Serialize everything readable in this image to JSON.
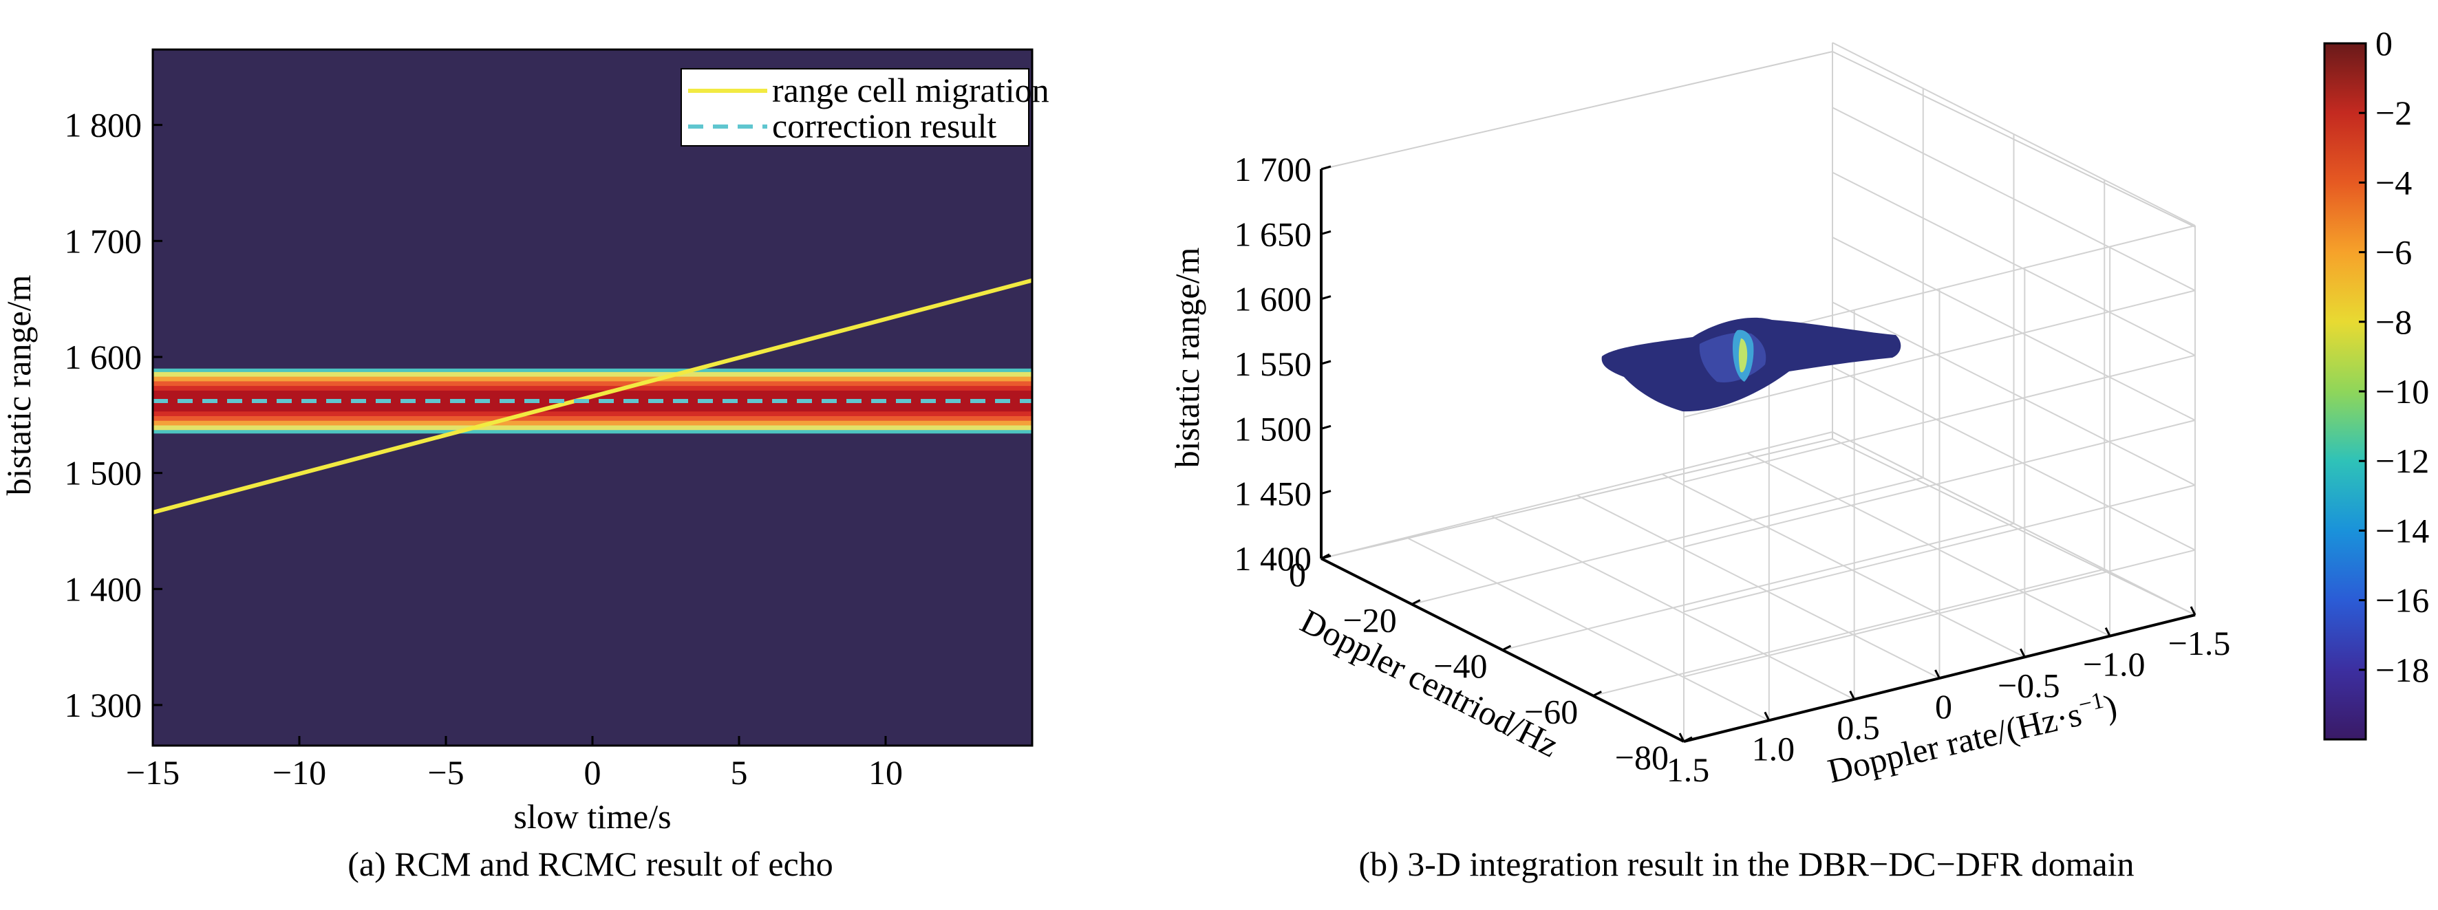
{
  "panel_a": {
    "caption": "(a) RCM and RCMC result of echo",
    "chart_data": {
      "type": "line",
      "xlabel": "slow time/s",
      "ylabel": "bistatic range/m",
      "xlim": [
        -15,
        15
      ],
      "ylim": [
        1865,
        1265
      ],
      "y_reversed": true,
      "xticks": [
        -15,
        -10,
        -5,
        0,
        5,
        10
      ],
      "xtick_labels": [
        "−15",
        "−10",
        "−5",
        "0",
        "5",
        "10"
      ],
      "yticks": [
        1300,
        1400,
        1500,
        1600,
        1700,
        1800
      ],
      "ytick_labels": [
        "1 300",
        "1 400",
        "1 500",
        "1 600",
        "1 700",
        "1 800"
      ],
      "background_color": "#352A56",
      "band": {
        "center": 1562,
        "layers": [
          {
            "half_width": 28,
            "color": "#4DC4C0"
          },
          {
            "half_width": 25,
            "color": "#E2E36A"
          },
          {
            "half_width": 21,
            "color": "#F4A13A"
          },
          {
            "half_width": 17,
            "color": "#EA5A2E"
          },
          {
            "half_width": 13,
            "color": "#D42D25"
          },
          {
            "half_width": 9,
            "color": "#B0141E"
          }
        ]
      },
      "series": [
        {
          "name": "range cell migration",
          "style": "solid",
          "color": "#F2EA42",
          "x": [
            -15,
            15
          ],
          "y": [
            1466,
            1666
          ]
        },
        {
          "name": "correction result",
          "style": "dashed",
          "color": "#5FC6CF",
          "x": [
            -15,
            15
          ],
          "y": [
            1562,
            1562
          ]
        }
      ],
      "legend_position": "top-right"
    }
  },
  "panel_b": {
    "caption": "(b) 3-D integration result in the DBR−DC−DFR domain",
    "chart_data": {
      "type": "scatter",
      "zlabel": "bistatic range/m",
      "xlabel": "Doppler centriod/Hz",
      "ylabel": "Doppler rate/(Hz·s",
      "ylabel_superscript": "−1",
      "ylabel_close": ")",
      "zticks": [
        1400,
        1450,
        1500,
        1550,
        1600,
        1650,
        1700
      ],
      "ztick_labels": [
        "1 400",
        "1 450",
        "1 500",
        "1 550",
        "1 600",
        "1 650",
        "1 700"
      ],
      "xticks": [
        0,
        -20,
        -40,
        -60,
        -80
      ],
      "xtick_labels": [
        "0",
        "−20",
        "−40",
        "−60",
        "−80"
      ],
      "yticks": [
        1.5,
        1.0,
        0.5,
        0,
        -0.5,
        -1.0,
        -1.5
      ],
      "ytick_labels": [
        "1.5",
        "1.0",
        "0.5",
        "0",
        "−0.5",
        "−1.0",
        "−1.5"
      ],
      "zlim": [
        1400,
        1700
      ],
      "xlim": [
        0,
        -80
      ],
      "ylim": [
        1.5,
        -1.5
      ],
      "grid": true,
      "target": {
        "range": 1555,
        "description_color": "#2A2E7A",
        "peak_color": "#BFE36A"
      }
    },
    "colorbar": {
      "ticks": [
        0,
        -2,
        -4,
        -6,
        -8,
        -10,
        -12,
        -14,
        -16,
        -18
      ],
      "tick_labels": [
        "0",
        "−2",
        "−4",
        "−6",
        "−8",
        "−10",
        "−12",
        "−14",
        "−16",
        "−18"
      ],
      "range": [
        -20,
        0
      ],
      "colors": [
        "#3A1A66",
        "#3C2FA0",
        "#2B5CD6",
        "#1A92DA",
        "#2FC2B8",
        "#8FD65A",
        "#E8DA32",
        "#F6A22A",
        "#E65A22",
        "#C42A20",
        "#6A1A1A"
      ]
    }
  }
}
